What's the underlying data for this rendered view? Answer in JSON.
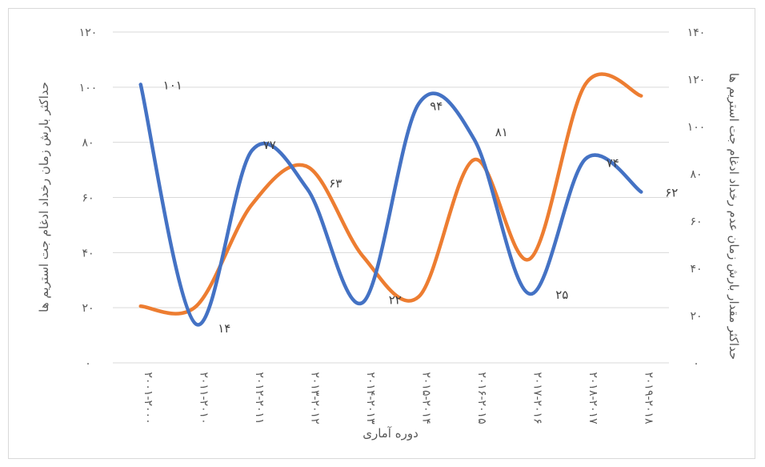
{
  "chart_data": {
    "type": "line",
    "smooth": true,
    "categories": [
      "۲۰۰۱-۲۰۰۰",
      "۲۰۱۱-۲۰۱۰",
      "۲۰۱۲-۲۰۱۱",
      "۲۰۱۳-۲۰۱۲",
      "۲۰۱۴-۲۰۱۳",
      "۲۰۱۵-۲۰۱۴",
      "۲۰۱۶-۲۰۱۵",
      "۲۰۱۷-۲۰۱۶",
      "۲۰۱۸-۲۰۱۷",
      "۲۰۱۹-۲۰۱۸"
    ],
    "xlabel": "دوره آماری",
    "ylabel": "حداکثر بارش زمان رخداد ادغام جت استریم ها",
    "ylabel_right": "حداکثر مقدار بارش زمان عدم رخداد ادغام جت استریم ها",
    "y_ticks": [
      "۰",
      "۲۰",
      "۴۰",
      "۶۰",
      "۸۰",
      "۱۰۰",
      "۱۲۰"
    ],
    "y_right_ticks": [
      "۰",
      "۲۰",
      "۴۰",
      "۶۰",
      "۸۰",
      "۱۰۰",
      "۱۲۰",
      "۱۴۰"
    ],
    "ylim": [
      0,
      120
    ],
    "ylim_right": [
      0,
      140
    ],
    "grid": true,
    "series": [
      {
        "color": "#4472c4",
        "axis": "left",
        "values": [
          101,
          14,
          77,
          63,
          22,
          94,
          81,
          25,
          74,
          62
        ],
        "labels": [
          "۱۰۱",
          "۱۴",
          "۷۷",
          "۶۳",
          "۲۲",
          "۹۴",
          "۸۱",
          "۲۵",
          "۷۴",
          "۶۲"
        ]
      },
      {
        "color": "#ed7d31",
        "axis": "right",
        "values": [
          24,
          24,
          67,
          83,
          45,
          28,
          86,
          44,
          118,
          113
        ]
      }
    ]
  }
}
